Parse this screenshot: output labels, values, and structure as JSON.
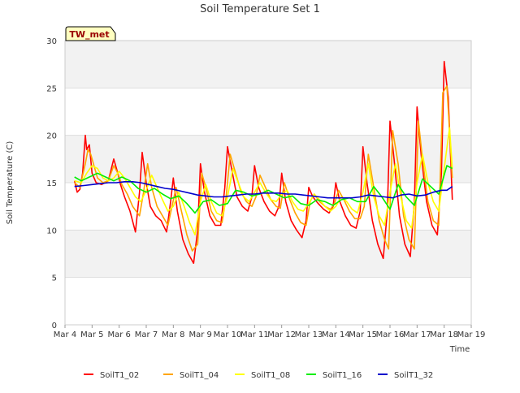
{
  "chart_data": {
    "type": "line",
    "title": "Soil Temperature Set 1",
    "xlabel": "Time",
    "ylabel": "Soil Temperature (C)",
    "ylim": [
      0,
      30
    ],
    "xlim": [
      4,
      19
    ],
    "yticks": [
      0,
      5,
      10,
      15,
      20,
      25,
      30
    ],
    "xticks": [
      {
        "x": 4,
        "label": "Mar 4"
      },
      {
        "x": 5,
        "label": "Mar 5"
      },
      {
        "x": 6,
        "label": "Mar 6"
      },
      {
        "x": 7,
        "label": "Mar 7"
      },
      {
        "x": 8,
        "label": "Mar 8"
      },
      {
        "x": 9,
        "label": "Mar 9"
      },
      {
        "x": 10,
        "label": "Mar 10"
      },
      {
        "x": 11,
        "label": "Mar 11"
      },
      {
        "x": 12,
        "label": "Mar 12"
      },
      {
        "x": 13,
        "label": "Mar 13"
      },
      {
        "x": 14,
        "label": "Mar 14"
      },
      {
        "x": 15,
        "label": "Mar 15"
      },
      {
        "x": 16,
        "label": "Mar 16"
      },
      {
        "x": 17,
        "label": "Mar 17"
      },
      {
        "x": 18,
        "label": "Mar 18"
      },
      {
        "x": 19,
        "label": "Mar 19"
      }
    ],
    "grid": true,
    "banded_background": true,
    "annotation_box": "TW_met",
    "legend_position": "bottom",
    "series": [
      {
        "name": "SoilT1_02",
        "color": "#ff0000",
        "x": [
          4.35,
          4.45,
          4.55,
          4.65,
          4.75,
          4.8,
          4.9,
          5.0,
          5.15,
          5.35,
          5.6,
          5.8,
          5.95,
          6.05,
          6.2,
          6.4,
          6.6,
          6.75,
          6.85,
          7.0,
          7.15,
          7.35,
          7.55,
          7.75,
          7.9,
          8.0,
          8.15,
          8.35,
          8.55,
          8.75,
          8.9,
          9.0,
          9.15,
          9.35,
          9.55,
          9.75,
          9.9,
          10.0,
          10.15,
          10.35,
          10.55,
          10.75,
          10.9,
          11.0,
          11.15,
          11.35,
          11.55,
          11.75,
          11.9,
          12.0,
          12.15,
          12.35,
          12.55,
          12.75,
          12.9,
          13.0,
          13.15,
          13.35,
          13.55,
          13.75,
          13.9,
          14.0,
          14.15,
          14.35,
          14.55,
          14.75,
          14.9,
          15.0,
          15.15,
          15.35,
          15.55,
          15.75,
          15.9,
          16.0,
          16.15,
          16.35,
          16.55,
          16.75,
          16.9,
          17.0,
          17.15,
          17.35,
          17.55,
          17.75,
          17.9,
          18.0,
          18.15,
          18.3
        ],
        "y": [
          15.2,
          14.0,
          14.3,
          16.0,
          20.0,
          18.5,
          19.0,
          16.0,
          15.0,
          14.8,
          15.2,
          17.5,
          16.0,
          14.8,
          13.5,
          12.0,
          9.8,
          14.0,
          18.2,
          15.0,
          12.5,
          11.5,
          11.0,
          9.8,
          13.0,
          15.5,
          12.0,
          9.0,
          7.5,
          6.5,
          10.0,
          17.0,
          14.0,
          11.5,
          10.5,
          10.5,
          14.5,
          18.8,
          16.5,
          13.5,
          12.5,
          12.0,
          13.5,
          16.8,
          14.5,
          13.0,
          12.0,
          11.5,
          12.5,
          16.0,
          13.0,
          11.0,
          10.0,
          9.2,
          11.0,
          14.5,
          13.5,
          12.8,
          12.2,
          11.8,
          12.5,
          15.0,
          13.0,
          11.5,
          10.5,
          10.2,
          12.0,
          18.8,
          15.0,
          11.0,
          8.5,
          7.0,
          12.0,
          21.5,
          17.5,
          11.5,
          8.5,
          7.2,
          13.0,
          23.0,
          18.0,
          13.0,
          10.5,
          9.5,
          16.0,
          27.8,
          24.0,
          13.2
        ]
      },
      {
        "name": "SoilT1_04",
        "color": "#ffa500",
        "x": [
          4.35,
          4.55,
          4.75,
          4.85,
          4.95,
          5.05,
          5.2,
          5.4,
          5.6,
          5.8,
          5.95,
          6.1,
          6.3,
          6.5,
          6.75,
          6.9,
          7.05,
          7.2,
          7.4,
          7.6,
          7.8,
          7.95,
          8.1,
          8.3,
          8.5,
          8.7,
          8.9,
          9.05,
          9.2,
          9.4,
          9.6,
          9.8,
          9.95,
          10.1,
          10.3,
          10.5,
          10.7,
          10.9,
          11.05,
          11.2,
          11.4,
          11.6,
          11.8,
          11.95,
          12.1,
          12.3,
          12.5,
          12.7,
          12.9,
          13.05,
          13.2,
          13.4,
          13.6,
          13.8,
          13.95,
          14.1,
          14.3,
          14.5,
          14.7,
          14.9,
          15.05,
          15.2,
          15.4,
          15.6,
          15.8,
          15.95,
          16.1,
          16.3,
          16.5,
          16.7,
          16.9,
          17.05,
          17.2,
          17.4,
          17.6,
          17.8,
          17.95,
          18.1,
          18.3
        ],
        "y": [
          15.0,
          14.5,
          17.0,
          18.5,
          18.0,
          17.0,
          15.5,
          15.0,
          15.2,
          16.8,
          16.0,
          14.8,
          13.8,
          12.5,
          11.5,
          14.0,
          17.0,
          14.5,
          12.5,
          11.5,
          10.5,
          12.5,
          14.5,
          12.0,
          9.5,
          7.8,
          8.5,
          16.0,
          14.5,
          12.0,
          11.0,
          10.8,
          13.5,
          18.0,
          16.0,
          14.0,
          13.0,
          12.5,
          13.5,
          15.8,
          14.5,
          13.2,
          12.5,
          12.3,
          15.0,
          13.2,
          11.8,
          10.8,
          10.5,
          13.0,
          13.8,
          13.0,
          12.5,
          12.2,
          12.8,
          14.2,
          13.2,
          12.0,
          11.2,
          11.2,
          12.5,
          18.0,
          14.5,
          11.0,
          9.0,
          8.0,
          20.5,
          17.0,
          11.5,
          9.0,
          8.0,
          21.5,
          17.5,
          13.0,
          11.0,
          10.5,
          24.5,
          25.2,
          15.5
        ]
      },
      {
        "name": "SoilT1_08",
        "color": "#ffff00",
        "x": [
          4.35,
          4.6,
          4.8,
          5.0,
          5.2,
          5.4,
          5.6,
          5.8,
          6.0,
          6.2,
          6.4,
          6.6,
          6.8,
          7.0,
          7.2,
          7.4,
          7.6,
          7.8,
          8.0,
          8.2,
          8.4,
          8.6,
          8.8,
          9.0,
          9.2,
          9.4,
          9.6,
          9.8,
          10.0,
          10.2,
          10.4,
          10.6,
          10.8,
          11.0,
          11.2,
          11.4,
          11.6,
          11.8,
          12.0,
          12.2,
          12.4,
          12.6,
          12.8,
          13.0,
          13.2,
          13.4,
          13.6,
          13.8,
          14.0,
          14.2,
          14.4,
          14.6,
          14.8,
          15.0,
          15.2,
          15.4,
          15.6,
          15.8,
          16.0,
          16.2,
          16.4,
          16.6,
          16.8,
          17.0,
          17.2,
          17.4,
          17.6,
          17.8,
          18.0,
          18.2,
          18.3
        ],
        "y": [
          15.2,
          15.0,
          16.0,
          16.8,
          16.5,
          15.5,
          15.2,
          15.5,
          16.2,
          15.5,
          14.5,
          13.5,
          13.0,
          14.2,
          15.8,
          14.5,
          13.2,
          12.0,
          12.5,
          14.0,
          12.5,
          10.8,
          9.5,
          13.0,
          14.8,
          13.0,
          11.8,
          11.5,
          13.5,
          16.5,
          15.0,
          13.5,
          13.0,
          14.0,
          15.0,
          14.0,
          13.2,
          13.0,
          13.8,
          14.2,
          13.0,
          12.2,
          12.0,
          12.8,
          13.8,
          13.2,
          12.5,
          12.0,
          12.5,
          13.5,
          13.0,
          12.2,
          11.8,
          14.0,
          17.0,
          13.5,
          11.5,
          10.5,
          14.0,
          17.0,
          13.5,
          11.0,
          10.2,
          15.0,
          18.0,
          15.0,
          13.0,
          12.0,
          16.5,
          20.8,
          16.5
        ]
      },
      {
        "name": "SoilT1_16",
        "color": "#00ee00",
        "x": [
          4.35,
          4.6,
          4.9,
          5.2,
          5.5,
          5.8,
          6.1,
          6.4,
          6.7,
          7.0,
          7.3,
          7.6,
          7.9,
          8.2,
          8.5,
          8.8,
          9.1,
          9.4,
          9.7,
          10.0,
          10.3,
          10.6,
          10.9,
          11.2,
          11.5,
          11.8,
          12.1,
          12.4,
          12.7,
          13.0,
          13.3,
          13.6,
          13.9,
          14.2,
          14.5,
          14.8,
          15.1,
          15.4,
          15.7,
          16.0,
          16.3,
          16.6,
          16.9,
          17.2,
          17.5,
          17.8,
          18.1,
          18.3
        ],
        "y": [
          15.6,
          15.2,
          15.6,
          16.0,
          15.6,
          15.2,
          15.6,
          15.2,
          14.4,
          14.0,
          14.4,
          13.8,
          13.3,
          13.6,
          12.8,
          11.8,
          13.0,
          13.2,
          12.6,
          12.8,
          14.2,
          14.0,
          13.6,
          13.8,
          14.2,
          13.8,
          13.4,
          13.6,
          12.8,
          12.6,
          13.2,
          13.0,
          12.6,
          13.2,
          13.4,
          13.0,
          13.0,
          14.6,
          13.5,
          12.2,
          14.8,
          13.5,
          12.6,
          15.4,
          14.6,
          13.8,
          16.8,
          16.5
        ]
      },
      {
        "name": "SoilT1_32",
        "color": "#0000cc",
        "x": [
          4.35,
          4.7,
          5.0,
          5.3,
          5.6,
          5.9,
          6.2,
          6.5,
          6.8,
          7.1,
          7.4,
          7.7,
          8.0,
          8.3,
          8.6,
          8.9,
          9.2,
          9.5,
          9.8,
          10.1,
          10.4,
          10.7,
          11.0,
          11.3,
          11.6,
          11.9,
          12.2,
          12.5,
          12.8,
          13.1,
          13.4,
          13.7,
          14.0,
          14.3,
          14.6,
          14.9,
          15.2,
          15.5,
          15.8,
          16.1,
          16.4,
          16.7,
          17.0,
          17.3,
          17.6,
          17.9,
          18.1,
          18.3
        ],
        "y": [
          14.6,
          14.7,
          14.8,
          14.9,
          15.0,
          15.0,
          15.1,
          15.1,
          15.0,
          14.8,
          14.6,
          14.4,
          14.3,
          14.1,
          13.9,
          13.7,
          13.6,
          13.5,
          13.5,
          13.6,
          13.7,
          13.8,
          13.8,
          13.9,
          13.9,
          13.9,
          13.8,
          13.8,
          13.7,
          13.6,
          13.5,
          13.4,
          13.4,
          13.4,
          13.4,
          13.5,
          13.7,
          13.6,
          13.5,
          13.4,
          13.7,
          13.8,
          13.6,
          13.7,
          14.0,
          14.2,
          14.2,
          14.6
        ]
      }
    ]
  }
}
